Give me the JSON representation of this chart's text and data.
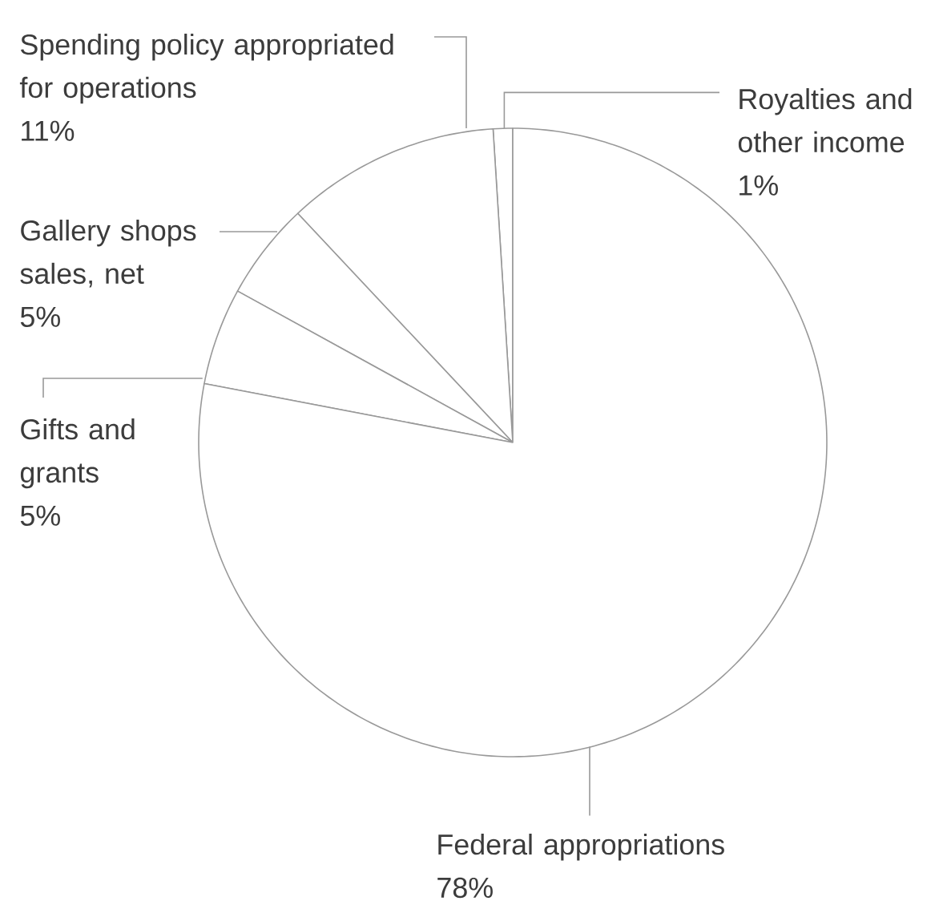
{
  "chart_data": {
    "type": "pie",
    "categories": [
      "Royalties and other income",
      "Spending policy appropriated for operations",
      "Gallery shops sales, net",
      "Gifts and grants",
      "Federal appropriations"
    ],
    "values": [
      1,
      11,
      5,
      5,
      78
    ],
    "value_labels": [
      "1%",
      "11%",
      "5%",
      "5%",
      "78%"
    ],
    "colors": [
      "#ffffff",
      "#ffffff",
      "#ffffff",
      "#ffffff",
      "#ffffff"
    ]
  }
}
